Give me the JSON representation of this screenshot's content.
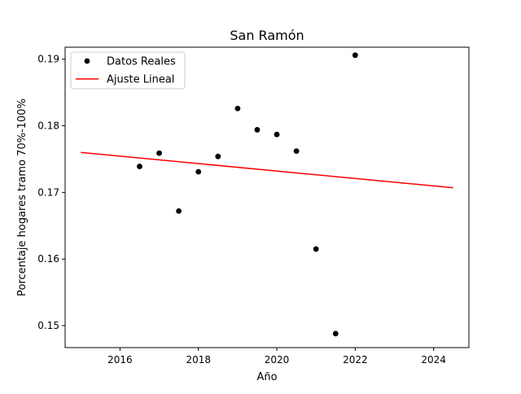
{
  "chart_data": {
    "type": "scatter",
    "title": "San Ramón",
    "xlabel": "Año",
    "ylabel": "Porcentaje hogares tramo 70%-100%",
    "xlim": [
      2014.6,
      2024.9
    ],
    "ylim": [
      0.1467,
      0.1918
    ],
    "xticks": [
      2016,
      2018,
      2020,
      2022,
      2024
    ],
    "xtick_labels": [
      "2016",
      "2018",
      "2020",
      "2022",
      "2024"
    ],
    "yticks": [
      0.15,
      0.16,
      0.17,
      0.18,
      0.19
    ],
    "ytick_labels": [
      "0.15",
      "0.16",
      "0.17",
      "0.18",
      "0.19"
    ],
    "grid": false,
    "legend_position": "top-left",
    "series": [
      {
        "name": "Datos Reales",
        "kind": "scatter",
        "color": "#000000",
        "x": [
          2016.5,
          2017.0,
          2017.5,
          2018.0,
          2018.5,
          2019.0,
          2019.5,
          2020.0,
          2020.5,
          2021.0,
          2021.5,
          2022.0
        ],
        "y": [
          0.1739,
          0.1759,
          0.1672,
          0.1731,
          0.1754,
          0.1826,
          0.1794,
          0.1787,
          0.1762,
          0.1615,
          0.1488,
          0.1906
        ]
      },
      {
        "name": "Ajuste Lineal",
        "kind": "line",
        "color": "#ff0000",
        "x": [
          2015.0,
          2024.5
        ],
        "y": [
          0.176,
          0.1707
        ]
      }
    ]
  }
}
